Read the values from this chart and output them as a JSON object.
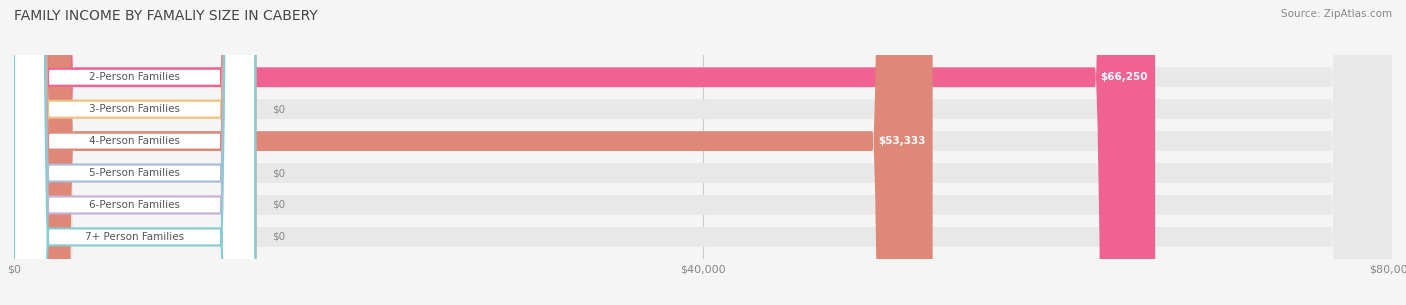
{
  "title": "FAMILY INCOME BY FAMALIY SIZE IN CABERY",
  "source": "Source: ZipAtlas.com",
  "categories": [
    "2-Person Families",
    "3-Person Families",
    "4-Person Families",
    "5-Person Families",
    "6-Person Families",
    "7+ Person Families"
  ],
  "values": [
    66250,
    0,
    53333,
    0,
    0,
    0
  ],
  "bar_colors": [
    "#f06292",
    "#f0c080",
    "#e08878",
    "#aabcd8",
    "#c8b0d8",
    "#88ccd0"
  ],
  "value_labels": [
    "$66,250",
    "$0",
    "$53,333",
    "$0",
    "$0",
    "$0"
  ],
  "xlim": [
    0,
    80000
  ],
  "xticks": [
    0,
    40000,
    80000
  ],
  "xticklabels": [
    "$0",
    "$40,000",
    "$80,000"
  ],
  "figsize": [
    14.06,
    3.05
  ],
  "dpi": 100,
  "background_color": "#f5f5f5",
  "bar_background_color": "#e8e8e8",
  "title_fontsize": 10,
  "bar_height": 0.6,
  "label_fontsize": 7.5,
  "value_fontsize": 7.5,
  "tick_fontsize": 8
}
